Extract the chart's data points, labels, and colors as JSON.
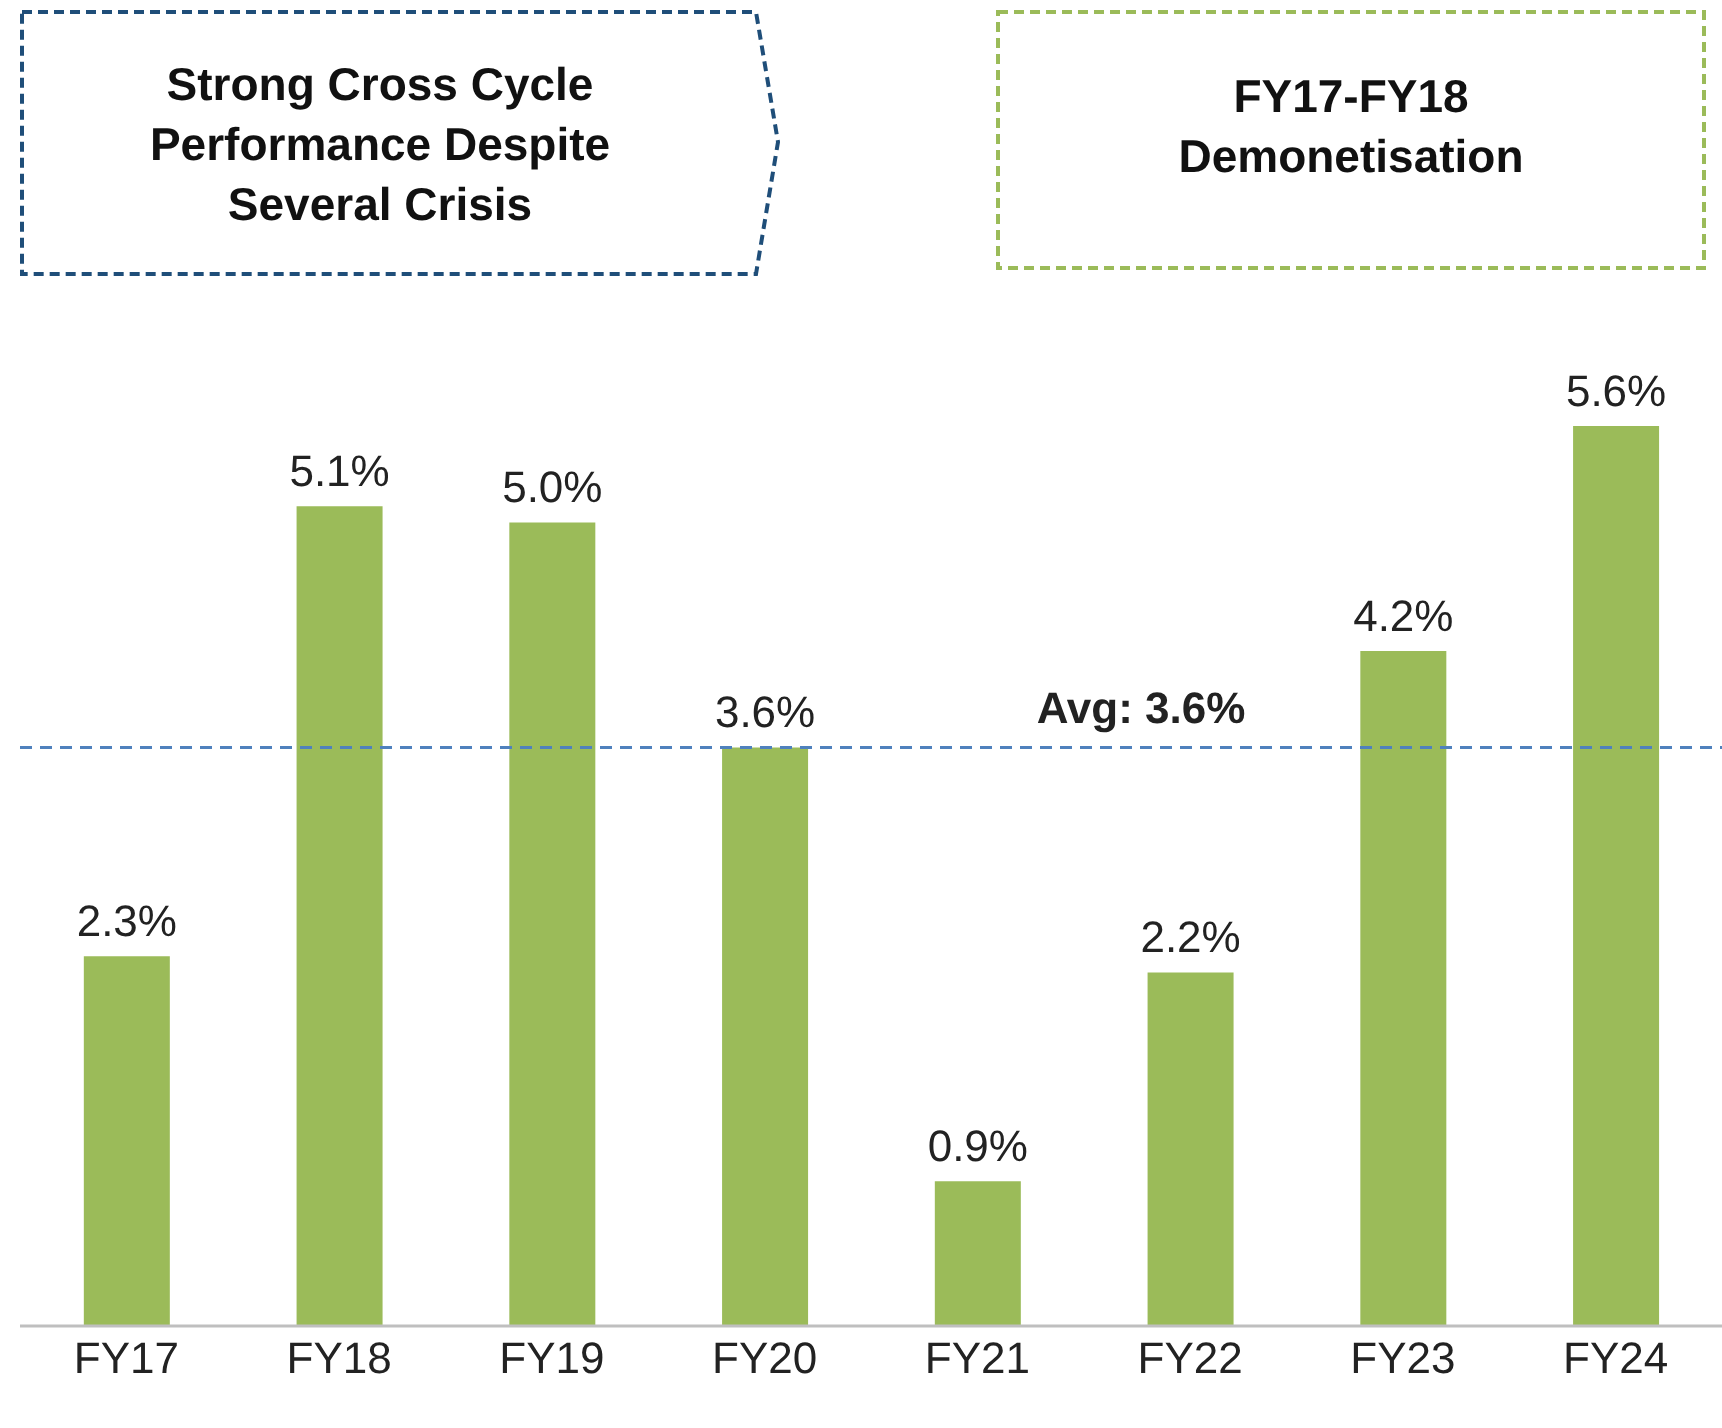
{
  "chart_data": {
    "type": "bar",
    "categories": [
      "FY17",
      "FY18",
      "FY19",
      "FY20",
      "FY21",
      "FY22",
      "FY23",
      "FY24"
    ],
    "values": [
      2.3,
      5.1,
      5.0,
      3.6,
      0.9,
      2.2,
      4.2,
      5.6
    ],
    "value_labels": [
      "2.3%",
      "5.1%",
      "5.0%",
      "3.6%",
      "0.9%",
      "2.2%",
      "4.2%",
      "5.6%"
    ],
    "color": "#9bbb59",
    "ref_lines": [
      {
        "axis": "y",
        "value": 3.6,
        "label": "Avg: 3.6%",
        "color": "#4f81bd",
        "line_style": "dashed"
      }
    ],
    "annotations": [
      "Strong Cross Cycle Performance Despite Several Crisis",
      "FY17-FY18 Demonetisation"
    ],
    "grid": false,
    "legend": false
  }
}
